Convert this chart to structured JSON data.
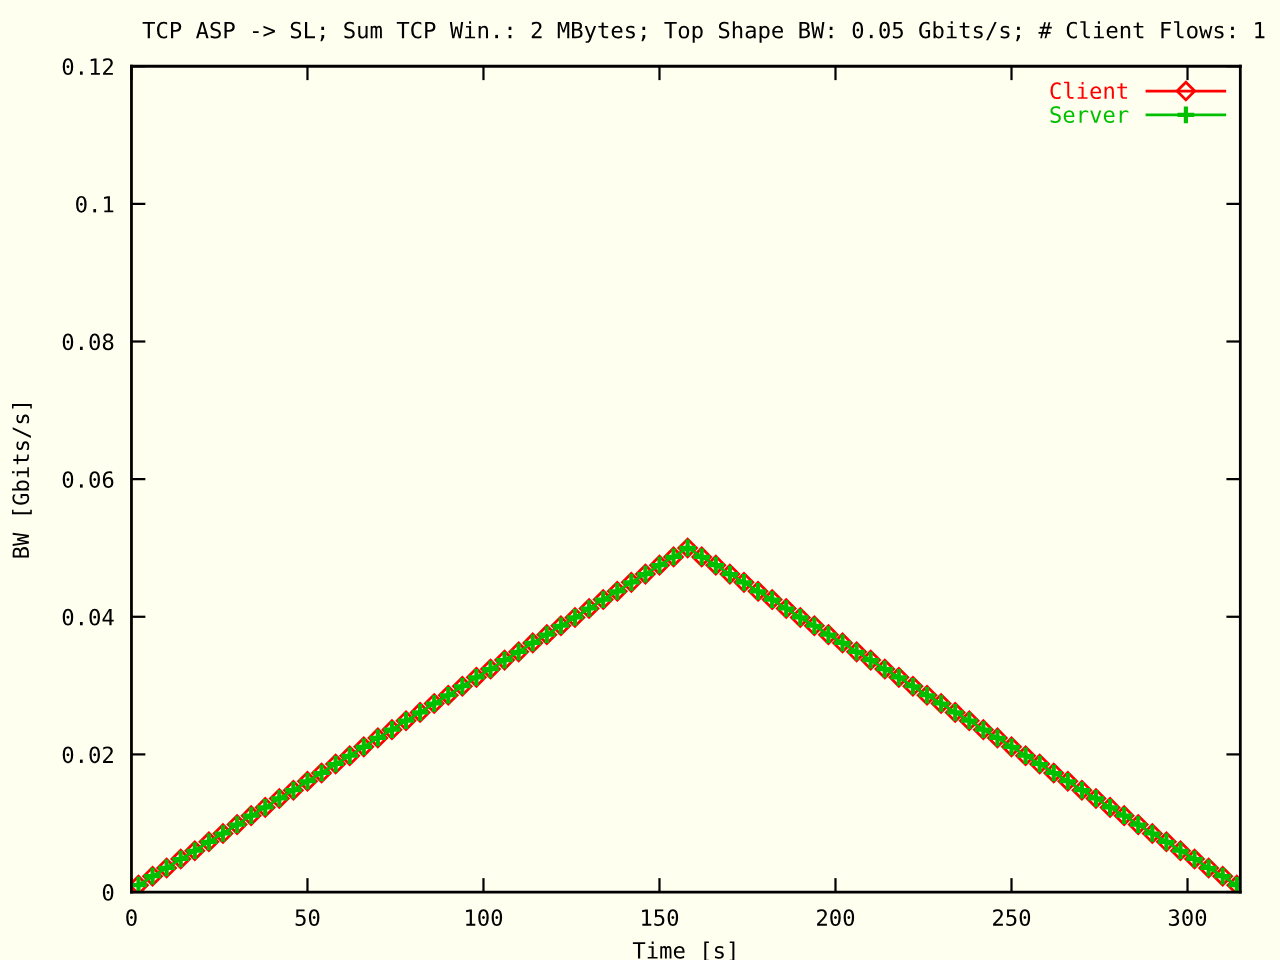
{
  "chart_data": {
    "type": "line",
    "title": "TCP ASP -> SL; Sum TCP Win.: 2 MBytes; Top Shape BW: 0.05 Gbits/s; # Client Flows: 1",
    "xlabel": "Time [s]",
    "ylabel": "BW [Gbits/s]",
    "x": [
      2,
      6,
      10,
      14,
      18,
      22,
      26,
      30,
      34,
      38,
      42,
      46,
      50,
      54,
      58,
      62,
      66,
      70,
      74,
      78,
      82,
      86,
      90,
      94,
      98,
      102,
      106,
      110,
      114,
      118,
      122,
      126,
      130,
      134,
      138,
      142,
      146,
      150,
      154,
      158,
      162,
      166,
      170,
      174,
      178,
      182,
      186,
      190,
      194,
      198,
      202,
      206,
      210,
      214,
      218,
      222,
      226,
      230,
      234,
      238,
      242,
      246,
      250,
      254,
      258,
      262,
      266,
      270,
      274,
      278,
      282,
      286,
      290,
      294,
      298,
      302,
      306,
      310,
      314
    ],
    "series": [
      {
        "name": "Client",
        "color": "#ff0000",
        "marker": "diamond",
        "values": [
          0.001,
          0.0023,
          0.0035,
          0.0048,
          0.006,
          0.0073,
          0.0085,
          0.0098,
          0.0111,
          0.0123,
          0.0136,
          0.0148,
          0.0161,
          0.0173,
          0.0186,
          0.0198,
          0.0211,
          0.0224,
          0.0236,
          0.0249,
          0.0261,
          0.0274,
          0.0286,
          0.0299,
          0.0312,
          0.0324,
          0.0337,
          0.0349,
          0.0362,
          0.0374,
          0.0387,
          0.0399,
          0.0412,
          0.0425,
          0.0437,
          0.045,
          0.0462,
          0.0475,
          0.0487,
          0.05,
          0.0487,
          0.0475,
          0.0462,
          0.045,
          0.0437,
          0.0425,
          0.0412,
          0.0399,
          0.0387,
          0.0374,
          0.0362,
          0.0349,
          0.0337,
          0.0324,
          0.0312,
          0.0299,
          0.0286,
          0.0274,
          0.0261,
          0.0249,
          0.0236,
          0.0224,
          0.0211,
          0.0198,
          0.0186,
          0.0173,
          0.0161,
          0.0148,
          0.0136,
          0.0123,
          0.0111,
          0.0098,
          0.0085,
          0.0073,
          0.006,
          0.0048,
          0.0035,
          0.0023,
          0.001
        ]
      },
      {
        "name": "Server",
        "color": "#00c000",
        "marker": "cross",
        "values": [
          0.001,
          0.0023,
          0.0035,
          0.0048,
          0.006,
          0.0073,
          0.0085,
          0.0098,
          0.0111,
          0.0123,
          0.0136,
          0.0148,
          0.0161,
          0.0173,
          0.0186,
          0.0198,
          0.0211,
          0.0224,
          0.0236,
          0.0249,
          0.0261,
          0.0274,
          0.0286,
          0.0299,
          0.0312,
          0.0324,
          0.0337,
          0.0349,
          0.0362,
          0.0374,
          0.0387,
          0.0399,
          0.0412,
          0.0425,
          0.0437,
          0.045,
          0.0462,
          0.0475,
          0.0487,
          0.05,
          0.0487,
          0.0475,
          0.0462,
          0.045,
          0.0437,
          0.0425,
          0.0412,
          0.0399,
          0.0387,
          0.0374,
          0.0362,
          0.0349,
          0.0337,
          0.0324,
          0.0312,
          0.0299,
          0.0286,
          0.0274,
          0.0261,
          0.0249,
          0.0236,
          0.0224,
          0.0211,
          0.0198,
          0.0186,
          0.0173,
          0.0161,
          0.0148,
          0.0136,
          0.0123,
          0.0111,
          0.0098,
          0.0085,
          0.0073,
          0.006,
          0.0048,
          0.0035,
          0.0023,
          0.001
        ]
      }
    ],
    "xlim": [
      0,
      315
    ],
    "xticks": [
      0,
      50,
      100,
      150,
      200,
      250,
      300
    ],
    "ylim": [
      0,
      0.12
    ],
    "yticks": [
      0,
      0.02,
      0.04,
      0.06,
      0.08,
      0.1,
      0.12
    ],
    "legend": "top right",
    "grid": false,
    "line_style": "solid"
  }
}
